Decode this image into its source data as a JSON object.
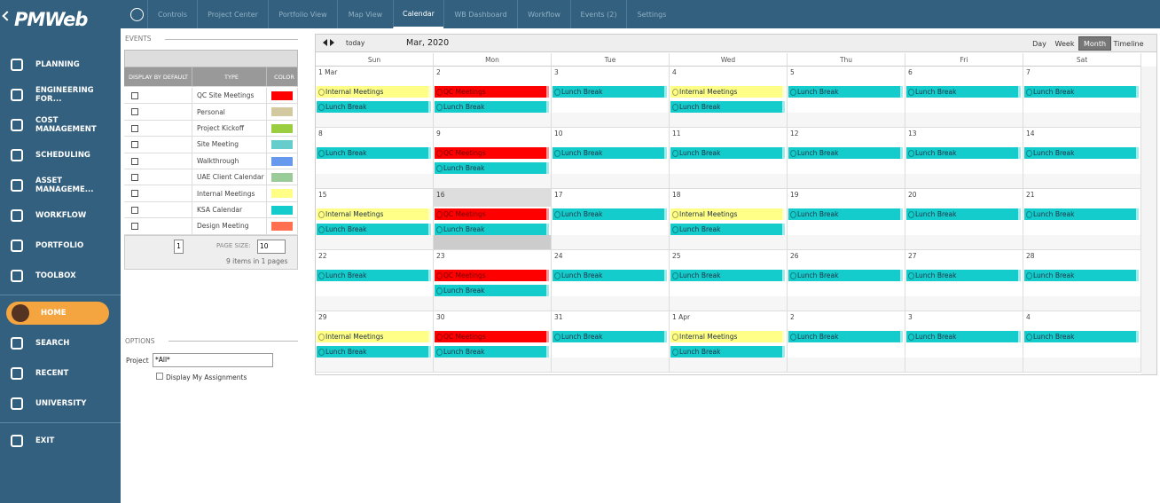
{
  "sidebar": {
    "logo": "PMWeb",
    "main": [
      "PLANNING",
      "ENGINEERING FOR...",
      "COST MANAGEMENT",
      "SCHEDULING",
      "ASSET MANAGEME...",
      "WORKFLOW",
      "PORTFOLIO",
      "TOOLBOX"
    ],
    "user": [
      "HOME",
      "SEARCH",
      "RECENT",
      "UNIVERSITY"
    ],
    "exit": "EXIT"
  },
  "tabs": [
    "Controls",
    "Project Center",
    "Portfolio View",
    "Map View",
    "Calendar",
    "WB Dashboard",
    "Workflow",
    "Events (2)",
    "Settings"
  ],
  "events_panel": {
    "title": "EVENTS",
    "headers": [
      "DISPLAY BY DEFAULT",
      "TYPE",
      "COLOR"
    ],
    "rows": [
      {
        "type": "QC Site Meetings",
        "color": "#ff0000"
      },
      {
        "type": "Personal",
        "color": "#d2c9a0"
      },
      {
        "type": "Project Kickoff",
        "color": "#9acd40"
      },
      {
        "type": "Site Meeting",
        "color": "#66cccc"
      },
      {
        "type": "Walkthrough",
        "color": "#6699ee"
      },
      {
        "type": "UAE Client Calendar",
        "color": "#99cc99"
      },
      {
        "type": "Internal Meetings",
        "color": "#ffff88"
      },
      {
        "type": "KSA Calendar",
        "color": "#14cccc"
      },
      {
        "type": "Design Meeting",
        "color": "#ff6f50"
      }
    ],
    "page": "1",
    "page_size_label": "PAGE SIZE:",
    "page_size": "10",
    "summary": "9 items in 1 pages"
  },
  "options": {
    "title": "OPTIONS",
    "project_label": "Project",
    "project_value": "*All*",
    "assignments": "Display My Assignments"
  },
  "calendar": {
    "today": "today",
    "period": "Mar, 2020",
    "views": [
      "Day",
      "Week",
      "Month",
      "Timeline"
    ],
    "weekdays": [
      "Sun",
      "Mon",
      "Tue",
      "Wed",
      "Thu",
      "Fri",
      "Sat"
    ],
    "weeks": [
      [
        {
          "label": "1 Mar",
          "events": [
            {
              "title": "Internal Meetings",
              "color": "#ffff88"
            },
            {
              "title": "Lunch Break",
              "color": "#14cccc"
            }
          ]
        },
        {
          "label": "2",
          "events": [
            {
              "title": "QC Meetings",
              "color": "#ff0000"
            },
            {
              "title": "Lunch Break",
              "color": "#14cccc"
            }
          ]
        },
        {
          "label": "3",
          "events": [
            {
              "title": "Lunch Break",
              "color": "#14cccc"
            }
          ]
        },
        {
          "label": "4",
          "events": [
            {
              "title": "Internal Meetings",
              "color": "#ffff88"
            },
            {
              "title": "Lunch Break",
              "color": "#14cccc"
            }
          ]
        },
        {
          "label": "5",
          "events": [
            {
              "title": "Lunch Break",
              "color": "#14cccc"
            }
          ]
        },
        {
          "label": "6",
          "events": [
            {
              "title": "Lunch Break",
              "color": "#14cccc"
            }
          ]
        },
        {
          "label": "7",
          "events": [
            {
              "title": "Lunch Break",
              "color": "#14cccc"
            }
          ]
        }
      ],
      [
        {
          "label": "8",
          "events": [
            {
              "title": "Lunch Break",
              "color": "#14cccc"
            }
          ]
        },
        {
          "label": "9",
          "events": [
            {
              "title": "QC Meetings",
              "color": "#ff0000"
            },
            {
              "title": "Lunch Break",
              "color": "#14cccc"
            }
          ]
        },
        {
          "label": "10",
          "events": [
            {
              "title": "Lunch Break",
              "color": "#14cccc"
            }
          ]
        },
        {
          "label": "11",
          "events": [
            {
              "title": "Lunch Break",
              "color": "#14cccc"
            }
          ]
        },
        {
          "label": "12",
          "events": [
            {
              "title": "Lunch Break",
              "color": "#14cccc"
            }
          ]
        },
        {
          "label": "13",
          "events": [
            {
              "title": "Lunch Break",
              "color": "#14cccc"
            }
          ]
        },
        {
          "label": "14",
          "events": [
            {
              "title": "Lunch Break",
              "color": "#14cccc"
            }
          ]
        }
      ],
      [
        {
          "label": "15",
          "events": [
            {
              "title": "Internal Meetings",
              "color": "#ffff88"
            },
            {
              "title": "Lunch Break",
              "color": "#14cccc"
            }
          ]
        },
        {
          "label": "16",
          "events": [
            {
              "title": "QC Meetings",
              "color": "#ff0000"
            },
            {
              "title": "Lunch Break",
              "color": "#14cccc"
            }
          ]
        },
        {
          "label": "17",
          "events": [
            {
              "title": "Lunch Break",
              "color": "#14cccc"
            }
          ]
        },
        {
          "label": "18",
          "events": [
            {
              "title": "Internal Meetings",
              "color": "#ffff88"
            },
            {
              "title": "Lunch Break",
              "color": "#14cccc"
            }
          ]
        },
        {
          "label": "19",
          "events": [
            {
              "title": "Lunch Break",
              "color": "#14cccc"
            }
          ]
        },
        {
          "label": "20",
          "events": [
            {
              "title": "Lunch Break",
              "color": "#14cccc"
            }
          ]
        },
        {
          "label": "21",
          "events": [
            {
              "title": "Lunch Break",
              "color": "#14cccc"
            }
          ]
        }
      ],
      [
        {
          "label": "22",
          "events": [
            {
              "title": "Lunch Break",
              "color": "#14cccc"
            }
          ]
        },
        {
          "label": "23",
          "events": [
            {
              "title": "QC Meetings",
              "color": "#ff0000"
            },
            {
              "title": "Lunch Break",
              "color": "#14cccc"
            }
          ]
        },
        {
          "label": "24",
          "events": [
            {
              "title": "Lunch Break",
              "color": "#14cccc"
            }
          ]
        },
        {
          "label": "25",
          "events": [
            {
              "title": "Lunch Break",
              "color": "#14cccc"
            }
          ]
        },
        {
          "label": "26",
          "events": [
            {
              "title": "Lunch Break",
              "color": "#14cccc"
            }
          ]
        },
        {
          "label": "27",
          "events": [
            {
              "title": "Lunch Break",
              "color": "#14cccc"
            }
          ]
        },
        {
          "label": "28",
          "events": [
            {
              "title": "Lunch Break",
              "color": "#14cccc"
            }
          ]
        }
      ],
      [
        {
          "label": "29",
          "events": [
            {
              "title": "Internal Meetings",
              "color": "#ffff88"
            },
            {
              "title": "Lunch Break",
              "color": "#14cccc"
            }
          ]
        },
        {
          "label": "30",
          "events": [
            {
              "title": "QC Meetings",
              "color": "#ff0000"
            },
            {
              "title": "Lunch Break",
              "color": "#14cccc"
            }
          ]
        },
        {
          "label": "31",
          "events": [
            {
              "title": "Lunch Break",
              "color": "#14cccc"
            }
          ]
        },
        {
          "label": "1 Apr",
          "events": [
            {
              "title": "Internal Meetings",
              "color": "#ffff88"
            },
            {
              "title": "Lunch Break",
              "color": "#14cccc"
            }
          ]
        },
        {
          "label": "2",
          "events": [
            {
              "title": "Lunch Break",
              "color": "#14cccc"
            }
          ]
        },
        {
          "label": "3",
          "events": [
            {
              "title": "Lunch Break",
              "color": "#14cccc"
            }
          ]
        },
        {
          "label": "4",
          "events": [
            {
              "title": "Lunch Break",
              "color": "#14cccc"
            }
          ]
        }
      ]
    ]
  }
}
